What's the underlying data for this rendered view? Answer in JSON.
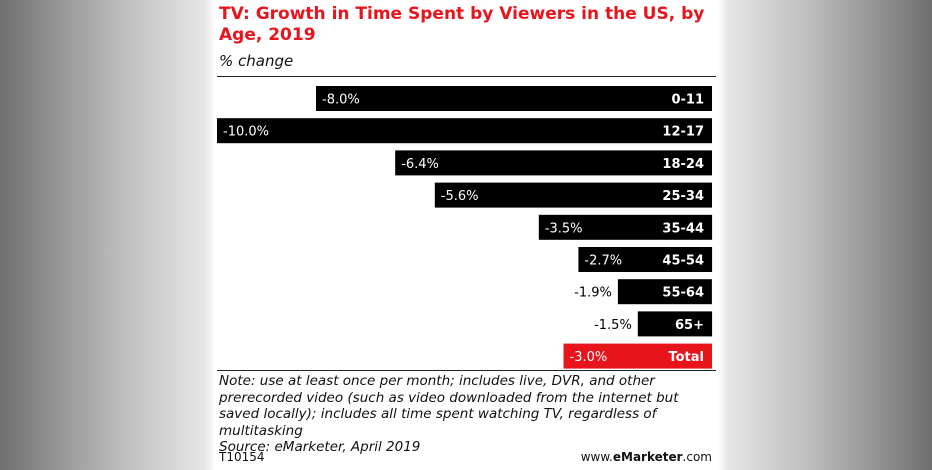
{
  "title": "TV: Growth in Time Spent by Viewers in the US, by Age, 2019",
  "subtitle": "% change",
  "note": "Note: use at least once per month; includes live, DVR, and other prerecorded video (such as video downloaded from the internet but saved locally); includes all time spent watching TV, regardless of multitasking",
  "source": "Source: eMarketer, April 2019",
  "chart_code": "T10154",
  "site": {
    "prefix": "www.",
    "brand": "eMarketer",
    "suffix": ".com"
  },
  "colors": {
    "bar": "#000000",
    "highlight": "#e8141c",
    "title": "#e8141c"
  },
  "chart_data": {
    "type": "bar",
    "orientation": "horizontal",
    "categories": [
      "0-11",
      "12-17",
      "18-24",
      "25-34",
      "35-44",
      "45-54",
      "55-64",
      "65+",
      "Total"
    ],
    "values": [
      -8.0,
      -10.0,
      -6.4,
      -5.6,
      -3.5,
      -2.7,
      -1.9,
      -1.5,
      -3.0
    ],
    "value_labels": [
      "-8.0%",
      "-10.0%",
      "-6.4%",
      "-5.6%",
      "-3.5%",
      "-2.7%",
      "-1.9%",
      "-1.5%",
      "-3.0%"
    ],
    "highlight_category": "Total",
    "title": "TV: Growth in Time Spent by Viewers in the US, by Age, 2019",
    "xlabel": "",
    "ylabel": "",
    "xlim": [
      -10,
      0
    ],
    "grid": false,
    "legend": "none"
  }
}
